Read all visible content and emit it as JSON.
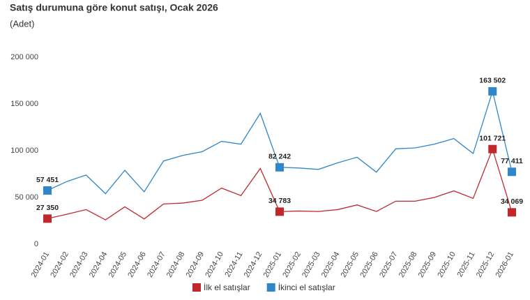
{
  "chart_data": {
    "type": "line",
    "title": "Satış durumuna göre konut satışı, Ocak 2026",
    "subtitle": "(Adet)",
    "categories": [
      "2024-01",
      "2024-02",
      "2024-03",
      "2024-04",
      "2024-05",
      "2024-06",
      "2024-07",
      "2024-08",
      "2024-09",
      "2024-10",
      "2024-11",
      "2024-12",
      "2025-01",
      "2025-02",
      "2025-03",
      "2025-04",
      "2025-05",
      "2025-06",
      "2025-07",
      "2025-08",
      "2025-09",
      "2025-10",
      "2025-11",
      "2025-12",
      "2026-01"
    ],
    "series": [
      {
        "name": "İlk el satışlar",
        "color": "#c0282d",
        "values": [
          27350,
          32000,
          37000,
          26000,
          40000,
          27000,
          43000,
          44000,
          47000,
          60000,
          52000,
          81000,
          34783,
          35500,
          35000,
          37000,
          42000,
          35000,
          46000,
          46000,
          50000,
          57000,
          49000,
          101721,
          34069
        ],
        "value_labels": [
          "27 350",
          null,
          null,
          null,
          null,
          null,
          null,
          null,
          null,
          null,
          null,
          null,
          "34 783",
          null,
          null,
          null,
          null,
          null,
          null,
          null,
          null,
          null,
          null,
          "101 721",
          "34 069"
        ]
      },
      {
        "name": "İkinci el satışlar",
        "color": "#2f86c9",
        "values": [
          57451,
          67000,
          74000,
          54000,
          79000,
          56000,
          89000,
          95000,
          99000,
          110000,
          107000,
          140000,
          82242,
          81500,
          80000,
          87000,
          93000,
          77000,
          102000,
          103000,
          107000,
          113000,
          97000,
          163502,
          77411
        ],
        "value_labels": [
          "57 451",
          null,
          null,
          null,
          null,
          null,
          null,
          null,
          null,
          null,
          null,
          null,
          "82 242",
          null,
          null,
          null,
          null,
          null,
          null,
          null,
          null,
          null,
          null,
          "163 502",
          "77 411"
        ]
      }
    ],
    "ylim": [
      0,
      200000
    ],
    "yticks": [
      0,
      {
        "value": 50000,
        "label": "50 000"
      },
      {
        "value": 100000,
        "label": "100 000"
      },
      {
        "value": 150000,
        "label": "150 000"
      },
      {
        "value": 200000,
        "label": "200 000"
      }
    ],
    "grid": false
  }
}
